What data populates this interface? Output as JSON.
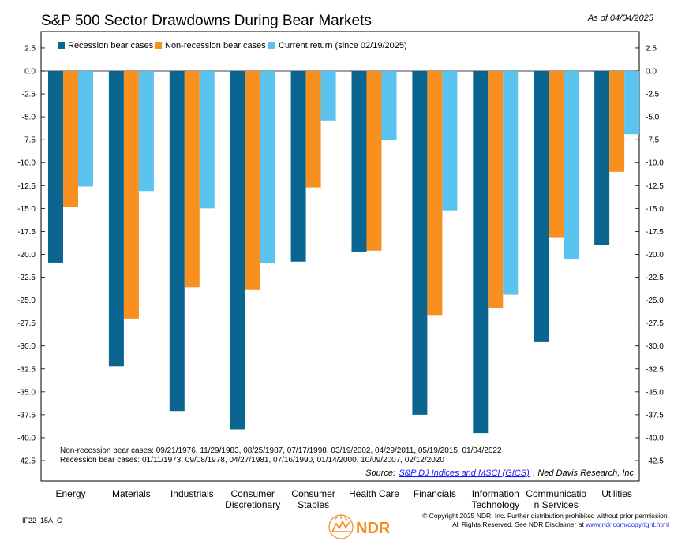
{
  "chart_data": {
    "type": "bar",
    "title": "S&P 500 Sector Drawdowns During Bear Markets",
    "as_of": "As of 04/04/2025",
    "xlabel": "",
    "ylabel": "",
    "ylim": [
      -45,
      4
    ],
    "y_ticks": [
      2.5,
      0.0,
      -2.5,
      -5.0,
      -7.5,
      -10.0,
      -12.5,
      -15.0,
      -17.5,
      -20.0,
      -22.5,
      -25.0,
      -27.5,
      -30.0,
      -32.5,
      -35.0,
      -37.5,
      -40.0,
      -42.5
    ],
    "categories": [
      [
        "Energy"
      ],
      [
        "Materials"
      ],
      [
        "Industrials"
      ],
      [
        "Consumer",
        "Discretionary"
      ],
      [
        "Consumer",
        "Staples"
      ],
      [
        "Health Care"
      ],
      [
        "Financials"
      ],
      [
        "Information",
        "Technology"
      ],
      [
        "Communicatio",
        "n Services"
      ],
      [
        "Utilities"
      ]
    ],
    "series": [
      {
        "name": "Recession bear cases",
        "color": "#0a6591",
        "values": [
          -20.9,
          -32.2,
          -37.1,
          -39.1,
          -20.8,
          -19.7,
          -37.5,
          -39.5,
          -29.5,
          -19.0
        ]
      },
      {
        "name": "Non-recession bear cases",
        "color": "#f7901e",
        "values": [
          -14.8,
          -27.0,
          -23.6,
          -23.9,
          -12.7,
          -19.6,
          -26.7,
          -25.9,
          -18.2,
          -11.0
        ]
      },
      {
        "name": "Current return (since 02/19/2025)",
        "color": "#5bc3f0",
        "values": [
          -12.6,
          -13.1,
          -15.0,
          -21.0,
          -5.4,
          -7.5,
          -15.2,
          -24.4,
          -20.5,
          -6.9
        ]
      }
    ],
    "legend_position": "top-left",
    "grid": false,
    "annotations": [
      "Non-recession bear cases: 09/21/1976, 11/29/1983, 08/25/1987, 07/17/1998, 03/19/2002, 04/29/2011, 05/19/2015, 01/04/2022",
      "Recession bear cases: 01/11/1973, 09/08/1978, 04/27/1981, 07/16/1990, 01/14/2000, 10/09/2007, 02/12/2020"
    ]
  },
  "source": {
    "label": "Source:",
    "link": "S&P DJ Indices and MSCI (GICS)",
    "rest": ", Ned Davis Research, Inc"
  },
  "footer": {
    "code": "IF22_15A_C",
    "logo": "NDR",
    "copyright_line1": "© Copyright 2025 NDR, Inc. Further distribution prohibited without prior permission.",
    "copyright_line2_prefix": "All Rights Reserved. See NDR Disclaimer at ",
    "copyright_link": "www.ndr.com/copyright.html"
  }
}
